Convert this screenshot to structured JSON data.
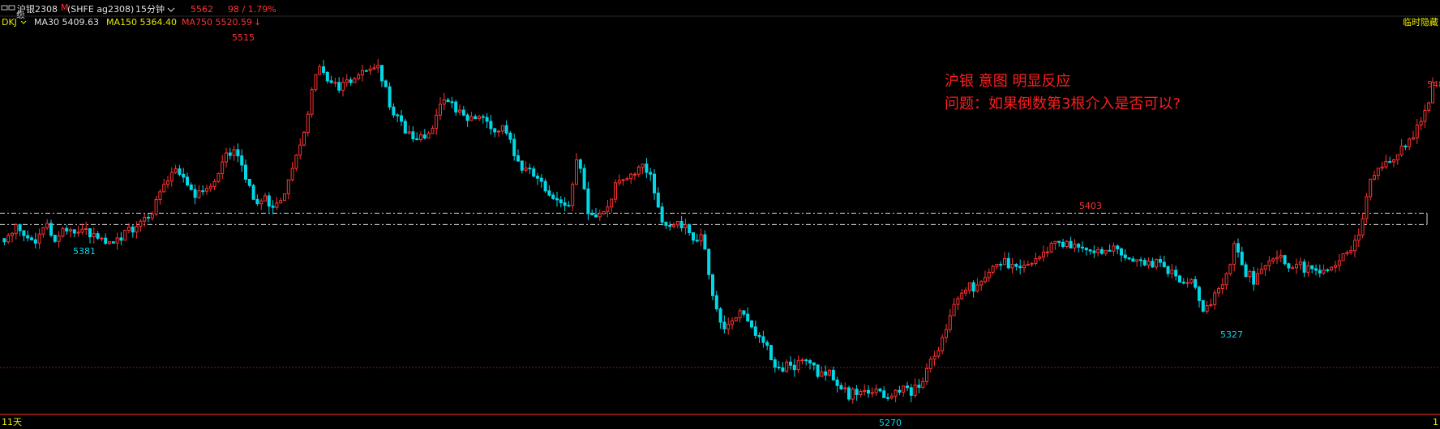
{
  "header": {
    "symbol_icon": "window-icon",
    "symbol_name": "沪银2308",
    "symbol_flag": "M",
    "symbol_code": "(SHFE ag2308)",
    "period": "15分钟",
    "last_price": "5562",
    "change": "98 / 1.79%",
    "settings_text": "级",
    "indicator": "DKJ",
    "ma30": "MA30 5409.63",
    "ma150": "MA150 5364.40",
    "ma750": "MA750 5520.59",
    "ma750_arrow": "↓",
    "right_note": "临时隐藏",
    "bottom_left": "11天",
    "bottom_right": "1"
  },
  "annotation": {
    "line1": "沪银 意图 明显反应",
    "line2": "问题：如果倒数第3根介入是否可以?"
  },
  "colors": {
    "up": "#ff3232",
    "down": "#00d8e8",
    "note": "#ff1e1e",
    "header_yellow": "#e8e800",
    "change": "#ff3232"
  },
  "chart_data": {
    "type": "candlestick",
    "timeframe": "15分钟",
    "ylim": [
      5262,
      5525
    ],
    "price_points": [
      5385,
      5392,
      5388,
      5385,
      5395,
      5385,
      5392,
      5388,
      5390,
      5382,
      5382,
      5386,
      5390,
      5396,
      5398,
      5420,
      5432,
      5430,
      5418,
      5415,
      5422,
      5440,
      5448,
      5430,
      5410,
      5412,
      5406,
      5422,
      5445,
      5470,
      5506,
      5498,
      5490,
      5496,
      5500,
      5506,
      5504,
      5478,
      5466,
      5458,
      5455,
      5462,
      5484,
      5480,
      5472,
      5470,
      5468,
      5462,
      5464,
      5445,
      5432,
      5432,
      5420,
      5412,
      5405,
      5446,
      5402,
      5398,
      5410,
      5428,
      5432,
      5436,
      5428,
      5396,
      5396,
      5394,
      5386,
      5384,
      5345,
      5320,
      5330,
      5332,
      5314,
      5315,
      5292,
      5295,
      5296,
      5300,
      5290,
      5290,
      5280,
      5275,
      5276,
      5276,
      5276,
      5273,
      5278,
      5276,
      5285,
      5300,
      5315,
      5340,
      5352,
      5350,
      5360,
      5365,
      5368,
      5366,
      5368,
      5372,
      5376,
      5384,
      5380,
      5378,
      5376,
      5376,
      5378,
      5376,
      5372,
      5370,
      5368,
      5366,
      5360,
      5356,
      5358,
      5336,
      5344,
      5350,
      5382,
      5362,
      5355,
      5370,
      5372,
      5368,
      5366,
      5364,
      5362,
      5362,
      5368,
      5376,
      5388,
      5428,
      5438,
      5442,
      5448,
      5458,
      5468,
      5494
    ],
    "labels": {
      "high": "5515",
      "low_left": "5381",
      "low_main": "5270",
      "resistance": "5403",
      "low_right": "5327",
      "right_high": "548"
    },
    "reference_lines": [
      {
        "name": "upper-dashed",
        "value": 5403
      },
      {
        "name": "lower-dashed",
        "value": 5395
      },
      {
        "name": "red-dotted",
        "value": 5294
      }
    ],
    "grid": false
  }
}
